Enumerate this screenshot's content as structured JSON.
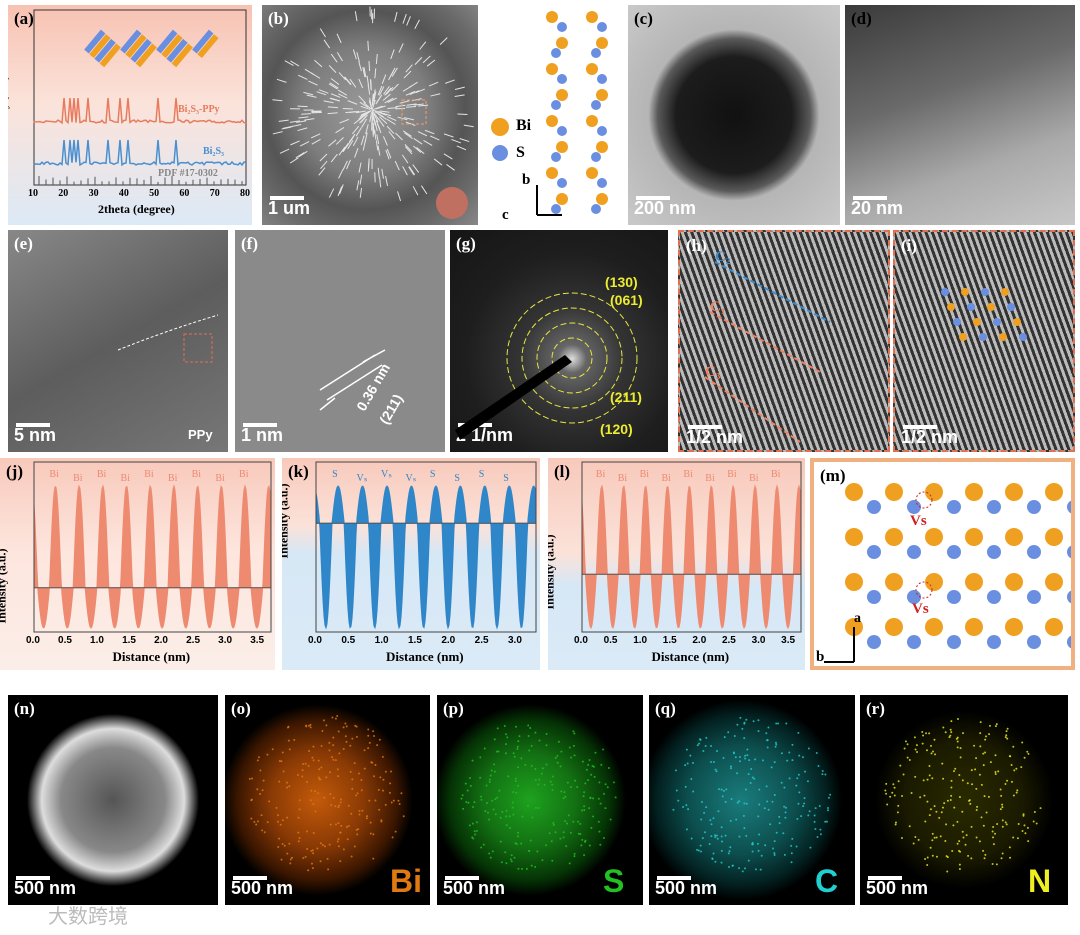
{
  "panels": {
    "a": {
      "label": "(a)",
      "y_axis": "Intensity (a.u.)",
      "x_axis": "2theta (degree)",
      "x_ticks": [
        "10",
        "20",
        "30",
        "40",
        "50",
        "60",
        "70",
        "80"
      ],
      "traces": [
        "Bi₂S₃-PPy",
        "Bi₂S₃",
        "PDF #17-0302"
      ]
    },
    "b": {
      "label": "(b)",
      "scale_bar": "1 um"
    },
    "structure": {
      "legend": [
        "Bi",
        "S"
      ],
      "axes": [
        "b",
        "c"
      ]
    },
    "c": {
      "label": "(c)",
      "scale_bar": "200 nm"
    },
    "d": {
      "label": "(d)",
      "scale_bar": "20 nm"
    },
    "e": {
      "label": "(e)",
      "scale_bar": "5 nm",
      "annotation": "PPy"
    },
    "f": {
      "label": "(f)",
      "scale_bar": "1 nm",
      "spacing": "0.36 nm",
      "plane": "(211)"
    },
    "g": {
      "label": "(g)",
      "scale_bar": "2 1/nm",
      "rings": [
        "(130)",
        "(061)",
        "(211)",
        "(120)"
      ]
    },
    "h": {
      "label": "(h)",
      "scale_bar": "1/2 nm",
      "lines": [
        "C₂",
        "C₁",
        "C₃"
      ]
    },
    "i": {
      "label": "(i)",
      "scale_bar": "1/2 nm"
    },
    "j": {
      "label": "(j)",
      "y_axis": "Intensity (a.u.)",
      "x_axis": "Distance (nm)",
      "x_ticks": [
        "0.0",
        "0.5",
        "1.0",
        "1.5",
        "2.0",
        "2.5",
        "3.0",
        "3.5"
      ],
      "peaks": [
        "Bi",
        "Bi",
        "Bi",
        "Bi",
        "Bi",
        "Bi",
        "Bi",
        "Bi",
        "Bi"
      ]
    },
    "k": {
      "label": "(k)",
      "y_axis": "Intensity (a.u.)",
      "x_axis": "Distance (nm)",
      "x_ticks": [
        "0.0",
        "0.5",
        "1.0",
        "1.5",
        "2.0",
        "2.5",
        "3.0"
      ],
      "peaks": [
        "S",
        "Vₛ",
        "Vₛ",
        "Vₛ",
        "S",
        "S",
        "S",
        "S"
      ]
    },
    "l": {
      "label": "(l)",
      "y_axis": "Intensity (a.u.)",
      "x_axis": "Distance (nm)",
      "x_ticks": [
        "0.0",
        "0.5",
        "1.0",
        "1.5",
        "2.0",
        "2.5",
        "3.0",
        "3.5"
      ],
      "peaks": [
        "Bi",
        "Bi",
        "Bi",
        "Bi",
        "Bi",
        "Bi",
        "Bi",
        "Bi",
        "Bi"
      ]
    },
    "m": {
      "label": "(m)",
      "vacancies": [
        "Vs",
        "Vs"
      ],
      "axes": [
        "a",
        "b"
      ]
    },
    "n": {
      "label": "(n)",
      "scale_bar": "500 nm"
    },
    "o": {
      "label": "(o)",
      "scale_bar": "500 nm",
      "element": "Bi"
    },
    "p": {
      "label": "(p)",
      "scale_bar": "500 nm",
      "element": "S"
    },
    "q": {
      "label": "(q)",
      "scale_bar": "500 nm",
      "element": "C"
    },
    "r": {
      "label": "(r)",
      "scale_bar": "500 nm",
      "element": "N"
    }
  },
  "watermark": "大数跨境"
}
